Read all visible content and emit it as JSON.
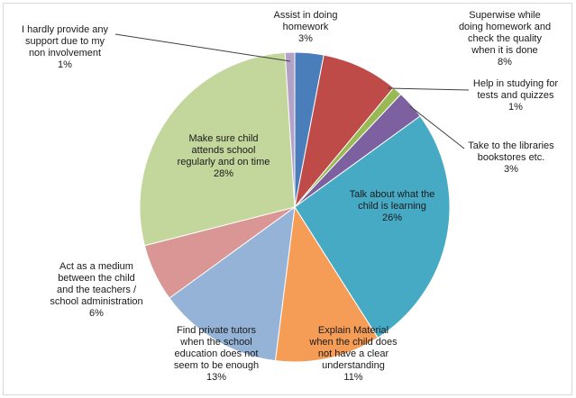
{
  "chart_data": {
    "type": "pie",
    "title": "",
    "series": [
      {
        "values": [
          3,
          8,
          1,
          3,
          26,
          11,
          13,
          6,
          28,
          1
        ],
        "labels": [
          [
            "Assist in doing",
            "homework",
            "3%"
          ],
          [
            "Superwise while",
            "doing homework and",
            "check the quality",
            "when it is done",
            "8%"
          ],
          [
            "Help in studying for",
            "tests and quizzes",
            "1%"
          ],
          [
            "Take to the libraries",
            "bookstores etc.",
            "3%"
          ],
          [
            "Talk about what the",
            "child is learning",
            "26%"
          ],
          [
            "Explain Material",
            "when the child does",
            "not have a clear",
            "understanding",
            "11%"
          ],
          [
            "Find private tutors",
            "when the school",
            "education does not",
            "seem to be enough",
            "13%"
          ],
          [
            "Act as a medium",
            "between the child",
            "and the teachers /",
            "school administration",
            "6%"
          ],
          [
            "Make sure child",
            "attends school",
            "regularly and on time",
            "28%"
          ],
          [
            "I hardly provide any",
            "support due to my",
            "non involvement",
            "1%"
          ]
        ],
        "colors": [
          "#4a7ebb",
          "#be4b48",
          "#98b954",
          "#7d60a0",
          "#46aac4",
          "#f59d56",
          "#95b3d7",
          "#d99694",
          "#c3d69b",
          "#b3a2c7"
        ]
      }
    ],
    "legend": "none",
    "data_labels": "outside-and-inside with category name and percentage"
  }
}
